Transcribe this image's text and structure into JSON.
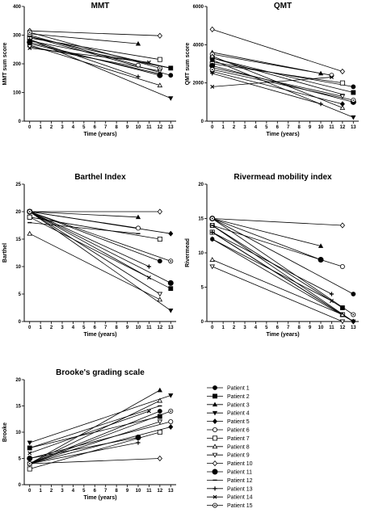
{
  "chart_data": [
    {
      "type": "line",
      "title": "MMT",
      "xlabel": "Time (years)",
      "ylabel": "MMT sum score",
      "xticks": [
        0,
        1,
        2,
        3,
        4,
        5,
        6,
        7,
        8,
        9,
        10,
        11,
        12,
        13
      ],
      "yticks": [
        0,
        100,
        200,
        300,
        400
      ],
      "xlim": [
        -0.5,
        13.5
      ],
      "ylim": [
        0,
        400
      ],
      "series": [
        {
          "name": "Patient 1",
          "points": [
            [
              0,
              295
            ],
            [
              13,
              160
            ]
          ]
        },
        {
          "name": "Patient 2",
          "points": [
            [
              0,
              280
            ],
            [
              13,
              185
            ]
          ]
        },
        {
          "name": "Patient 3",
          "points": [
            [
              0,
              305
            ],
            [
              10,
              270
            ]
          ]
        },
        {
          "name": "Patient 4",
          "points": [
            [
              0,
              285
            ],
            [
              13,
              80
            ]
          ]
        },
        {
          "name": "Patient 5",
          "points": [
            [
              0,
              270
            ],
            [
              12,
              165
            ]
          ]
        },
        {
          "name": "Patient 6",
          "points": [
            [
              0,
              300
            ],
            [
              10,
              195
            ]
          ]
        },
        {
          "name": "Patient 7",
          "points": [
            [
              0,
              290
            ],
            [
              12,
              215
            ]
          ]
        },
        {
          "name": "Patient 8",
          "points": [
            [
              0,
              265
            ],
            [
              12,
              125
            ]
          ]
        },
        {
          "name": "Patient 9",
          "points": [
            [
              0,
              260
            ],
            [
              12,
              175
            ]
          ]
        },
        {
          "name": "Patient 10",
          "points": [
            [
              0,
              315
            ],
            [
              12,
              298
            ]
          ]
        },
        {
          "name": "Patient 11",
          "points": [
            [
              0,
              275
            ],
            [
              12,
              160
            ]
          ]
        },
        {
          "name": "Patient 12",
          "points": [
            [
              0,
              295
            ],
            [
              13,
              185
            ]
          ]
        },
        {
          "name": "Patient 13",
          "points": [
            [
              0,
              285
            ],
            [
              10,
              155
            ]
          ]
        },
        {
          "name": "Patient 14",
          "points": [
            [
              0,
              255
            ],
            [
              11,
              205
            ]
          ]
        },
        {
          "name": "Patient 15",
          "points": [
            [
              0,
              310
            ],
            [
              12,
              185
            ]
          ]
        }
      ]
    },
    {
      "type": "line",
      "title": "QMT",
      "xlabel": "Time (years)",
      "ylabel": "QMT sum score",
      "xticks": [
        0,
        1,
        2,
        3,
        4,
        5,
        6,
        7,
        8,
        9,
        10,
        11,
        12,
        13
      ],
      "yticks": [
        0,
        2000,
        4000,
        6000
      ],
      "xlim": [
        -0.5,
        13.5
      ],
      "ylim": [
        0,
        6000
      ],
      "series": [
        {
          "name": "Patient 1",
          "points": [
            [
              0,
              3100
            ],
            [
              13,
              1800
            ]
          ]
        },
        {
          "name": "Patient 2",
          "points": [
            [
              0,
              3300
            ],
            [
              13,
              1500
            ]
          ]
        },
        {
          "name": "Patient 3",
          "points": [
            [
              0,
              3600
            ],
            [
              10,
              2500
            ]
          ]
        },
        {
          "name": "Patient 4",
          "points": [
            [
              0,
              3200
            ],
            [
              13,
              200
            ]
          ]
        },
        {
          "name": "Patient 5",
          "points": [
            [
              0,
              2600
            ],
            [
              12,
              900
            ]
          ]
        },
        {
          "name": "Patient 6",
          "points": [
            [
              0,
              3500
            ],
            [
              11,
              2400
            ]
          ]
        },
        {
          "name": "Patient 7",
          "points": [
            [
              0,
              3000
            ],
            [
              12,
              2000
            ]
          ]
        },
        {
          "name": "Patient 8",
          "points": [
            [
              0,
              3400
            ],
            [
              12,
              700
            ]
          ]
        },
        {
          "name": "Patient 9",
          "points": [
            [
              0,
              2800
            ],
            [
              12,
              1300
            ]
          ]
        },
        {
          "name": "Patient 10",
          "points": [
            [
              0,
              4800
            ],
            [
              12,
              2600
            ]
          ]
        },
        {
          "name": "Patient 11",
          "points": [
            [
              0,
              2900
            ],
            [
              13,
              1000
            ]
          ]
        },
        {
          "name": "Patient 12",
          "points": [
            [
              0,
              3300
            ],
            [
              12,
              1400
            ]
          ]
        },
        {
          "name": "Patient 13",
          "points": [
            [
              0,
              2500
            ],
            [
              10,
              900
            ]
          ]
        },
        {
          "name": "Patient 14",
          "points": [
            [
              0,
              1800
            ],
            [
              11,
              2300
            ]
          ]
        },
        {
          "name": "Patient 15",
          "points": [
            [
              0,
              2700
            ],
            [
              13,
              1100
            ]
          ]
        }
      ]
    },
    {
      "type": "line",
      "title": "Barthel Index",
      "xlabel": "Time (years)",
      "ylabel": "Barthel",
      "xticks": [
        0,
        1,
        2,
        3,
        4,
        5,
        6,
        7,
        8,
        9,
        10,
        11,
        12,
        13
      ],
      "yticks": [
        0,
        5,
        10,
        15,
        20,
        25
      ],
      "xlim": [
        -0.5,
        13.5
      ],
      "ylim": [
        0,
        25
      ],
      "series": [
        {
          "name": "Patient 1",
          "points": [
            [
              0,
              20
            ],
            [
              12,
              11
            ]
          ]
        },
        {
          "name": "Patient 2",
          "points": [
            [
              0,
              19
            ],
            [
              13,
              6
            ]
          ]
        },
        {
          "name": "Patient 3",
          "points": [
            [
              0,
              20
            ],
            [
              10,
              19
            ]
          ]
        },
        {
          "name": "Patient 4",
          "points": [
            [
              0,
              20
            ],
            [
              13,
              2
            ]
          ]
        },
        {
          "name": "Patient 5",
          "points": [
            [
              0,
              20
            ],
            [
              13,
              16
            ]
          ]
        },
        {
          "name": "Patient 6",
          "points": [
            [
              0,
              20
            ],
            [
              10,
              17
            ]
          ]
        },
        {
          "name": "Patient 7",
          "points": [
            [
              0,
              19
            ],
            [
              12,
              15
            ]
          ]
        },
        {
          "name": "Patient 8",
          "points": [
            [
              0,
              16
            ],
            [
              12,
              4
            ]
          ]
        },
        {
          "name": "Patient 9",
          "points": [
            [
              0,
              20
            ],
            [
              12,
              5
            ]
          ]
        },
        {
          "name": "Patient 10",
          "points": [
            [
              0,
              20
            ],
            [
              12,
              20
            ]
          ]
        },
        {
          "name": "Patient 11",
          "points": [
            [
              0,
              20
            ],
            [
              13,
              7
            ]
          ]
        },
        {
          "name": "Patient 12",
          "points": [
            [
              0,
              18
            ],
            [
              10,
              16
            ]
          ]
        },
        {
          "name": "Patient 13",
          "points": [
            [
              0,
              20
            ],
            [
              11,
              10
            ]
          ]
        },
        {
          "name": "Patient 14",
          "points": [
            [
              0,
              20
            ],
            [
              11,
              8
            ]
          ]
        },
        {
          "name": "Patient 15",
          "points": [
            [
              0,
              20
            ],
            [
              13,
              11
            ]
          ]
        }
      ]
    },
    {
      "type": "line",
      "title": "Rivermead mobility index",
      "xlabel": "Time (years)",
      "ylabel": "Rivermead",
      "xticks": [
        0,
        1,
        2,
        3,
        4,
        5,
        6,
        7,
        8,
        9,
        10,
        11,
        12,
        13
      ],
      "yticks": [
        0,
        5,
        10,
        15,
        20
      ],
      "xlim": [
        -0.5,
        13.5
      ],
      "ylim": [
        0,
        20
      ],
      "series": [
        {
          "name": "Patient 1",
          "points": [
            [
              0,
              15
            ],
            [
              13,
              4
            ]
          ]
        },
        {
          "name": "Patient 2",
          "points": [
            [
              0,
              14
            ],
            [
              12,
              2
            ]
          ]
        },
        {
          "name": "Patient 3",
          "points": [
            [
              0,
              15
            ],
            [
              10,
              11
            ]
          ]
        },
        {
          "name": "Patient 4",
          "points": [
            [
              0,
              13
            ],
            [
              13,
              0
            ]
          ]
        },
        {
          "name": "Patient 5",
          "points": [
            [
              0,
              12
            ],
            [
              13,
              0
            ]
          ]
        },
        {
          "name": "Patient 6",
          "points": [
            [
              0,
              14
            ],
            [
              12,
              8
            ]
          ]
        },
        {
          "name": "Patient 7",
          "points": [
            [
              0,
              13
            ],
            [
              12,
              1
            ]
          ]
        },
        {
          "name": "Patient 8",
          "points": [
            [
              0,
              9
            ],
            [
              12,
              1
            ]
          ]
        },
        {
          "name": "Patient 9",
          "points": [
            [
              0,
              8
            ],
            [
              12,
              0
            ]
          ]
        },
        {
          "name": "Patient 10",
          "points": [
            [
              0,
              15
            ],
            [
              12,
              14
            ]
          ]
        },
        {
          "name": "Patient 11",
          "points": [
            [
              0,
              15
            ],
            [
              10,
              9
            ]
          ]
        },
        {
          "name": "Patient 12",
          "points": [
            [
              0,
              14
            ],
            [
              13,
              0
            ]
          ]
        },
        {
          "name": "Patient 13",
          "points": [
            [
              0,
              13
            ],
            [
              11,
              4
            ]
          ]
        },
        {
          "name": "Patient 14",
          "points": [
            [
              0,
              12
            ],
            [
              11,
              3
            ]
          ]
        },
        {
          "name": "Patient 15",
          "points": [
            [
              0,
              15
            ],
            [
              13,
              1
            ]
          ]
        }
      ]
    },
    {
      "type": "line",
      "title": "Brooke's grading scale",
      "xlabel": "Time (years)",
      "ylabel": "Brooke",
      "xticks": [
        0,
        1,
        2,
        3,
        4,
        5,
        6,
        7,
        8,
        9,
        10,
        11,
        12,
        13
      ],
      "yticks": [
        0,
        5,
        10,
        15,
        20
      ],
      "xlim": [
        -0.5,
        13.5
      ],
      "ylim": [
        0,
        20
      ],
      "series": [
        {
          "name": "Patient 1",
          "points": [
            [
              0,
              4
            ],
            [
              12,
              14
            ]
          ]
        },
        {
          "name": "Patient 2",
          "points": [
            [
              0,
              7
            ],
            [
              12,
              13
            ]
          ]
        },
        {
          "name": "Patient 3",
          "points": [
            [
              0,
              4
            ],
            [
              12,
              18
            ]
          ]
        },
        {
          "name": "Patient 4",
          "points": [
            [
              0,
              8
            ],
            [
              13,
              17
            ]
          ]
        },
        {
          "name": "Patient 5",
          "points": [
            [
              0,
              4
            ],
            [
              13,
              11
            ]
          ]
        },
        {
          "name": "Patient 6",
          "points": [
            [
              0,
              5
            ],
            [
              13,
              12
            ]
          ]
        },
        {
          "name": "Patient 7",
          "points": [
            [
              0,
              3
            ],
            [
              12,
              10
            ]
          ]
        },
        {
          "name": "Patient 8",
          "points": [
            [
              0,
              4
            ],
            [
              12,
              16
            ]
          ]
        },
        {
          "name": "Patient 9",
          "points": [
            [
              0,
              4
            ],
            [
              12,
              12
            ]
          ]
        },
        {
          "name": "Patient 10",
          "points": [
            [
              0,
              4
            ],
            [
              12,
              5
            ]
          ]
        },
        {
          "name": "Patient 11",
          "points": [
            [
              0,
              5
            ],
            [
              10,
              9
            ]
          ]
        },
        {
          "name": "Patient 12",
          "points": [
            [
              0,
              7
            ],
            [
              12,
              15
            ]
          ]
        },
        {
          "name": "Patient 13",
          "points": [
            [
              0,
              4
            ],
            [
              10,
              8
            ]
          ]
        },
        {
          "name": "Patient 14",
          "points": [
            [
              0,
              6
            ],
            [
              11,
              14
            ]
          ]
        },
        {
          "name": "Patient 15",
          "points": [
            [
              0,
              4
            ],
            [
              13,
              14
            ]
          ]
        }
      ]
    }
  ],
  "legend": [
    {
      "label": "Patient 1",
      "marker": "filled-circle"
    },
    {
      "label": "Patient 2",
      "marker": "filled-square"
    },
    {
      "label": "Patient 3",
      "marker": "filled-triangle-up"
    },
    {
      "label": "Patient 4",
      "marker": "filled-triangle-down"
    },
    {
      "label": "Patient 5",
      "marker": "filled-diamond"
    },
    {
      "label": "Patient 6",
      "marker": "open-circle"
    },
    {
      "label": "Patient 7",
      "marker": "open-square"
    },
    {
      "label": "Patient 8",
      "marker": "open-triangle-up"
    },
    {
      "label": "Patient 9",
      "marker": "open-triangle-down"
    },
    {
      "label": "Patient 10",
      "marker": "open-diamond"
    },
    {
      "label": "Patient 11",
      "marker": "large-filled-circle"
    },
    {
      "label": "Patient 12",
      "marker": "dash"
    },
    {
      "label": "Patient 13",
      "marker": "plus"
    },
    {
      "label": "Patient 14",
      "marker": "cross"
    },
    {
      "label": "Patient 15",
      "marker": "circle-dot"
    }
  ]
}
